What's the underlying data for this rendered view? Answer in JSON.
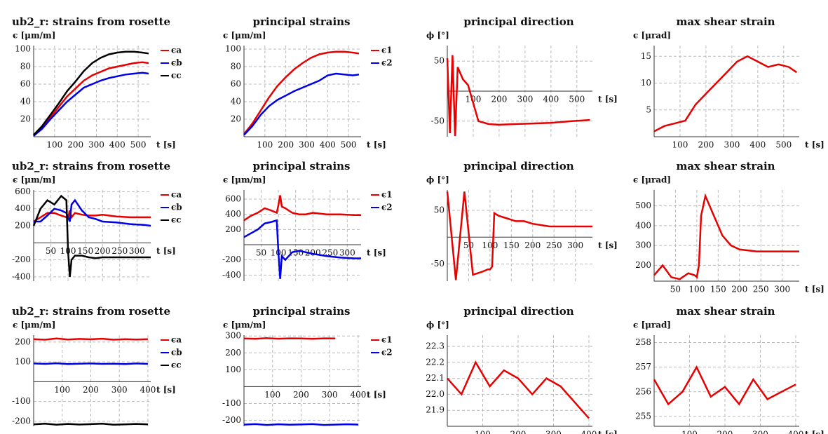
{
  "chart_data": [
    {
      "type": "line",
      "title": "ub2_r: strains from rosette",
      "ylabel": "ϵ [μm/m]",
      "xlabel": "t [s]",
      "grid": true,
      "legend": "right",
      "x": [
        0,
        40,
        80,
        120,
        160,
        200,
        240,
        280,
        320,
        360,
        400,
        440,
        480,
        520,
        550
      ],
      "series": [
        {
          "name": "ϵa",
          "color": "#e60000",
          "values": [
            2,
            10,
            22,
            34,
            46,
            55,
            64,
            70,
            74,
            78,
            80,
            82,
            84,
            85,
            84
          ]
        },
        {
          "name": "ϵb",
          "color": "#0000e6",
          "values": [
            1,
            9,
            20,
            30,
            40,
            48,
            56,
            60,
            64,
            67,
            69,
            71,
            72,
            73,
            72
          ]
        },
        {
          "name": "ϵc",
          "color": "#000000",
          "values": [
            2,
            12,
            25,
            38,
            52,
            63,
            75,
            84,
            90,
            94,
            96,
            97,
            97,
            96,
            95
          ]
        }
      ],
      "xlim": [
        0,
        560
      ],
      "ylim": [
        0,
        104
      ],
      "xticks": [
        100,
        200,
        300,
        400,
        500
      ],
      "yticks": [
        20,
        40,
        60,
        80,
        100
      ]
    },
    {
      "type": "line",
      "title": "principal strains",
      "ylabel": "ϵ [μm/m]",
      "xlabel": "t [s]",
      "grid": true,
      "legend": "right",
      "x": [
        0,
        40,
        80,
        120,
        160,
        200,
        240,
        280,
        320,
        360,
        400,
        440,
        480,
        520,
        550
      ],
      "series": [
        {
          "name": "ϵ1",
          "color": "#e60000",
          "values": [
            3,
            15,
            30,
            45,
            58,
            68,
            77,
            84,
            90,
            94,
            96,
            97,
            97,
            96,
            95
          ]
        },
        {
          "name": "ϵ2",
          "color": "#0000e6",
          "values": [
            2,
            12,
            25,
            35,
            42,
            47,
            52,
            56,
            60,
            64,
            70,
            72,
            71,
            70,
            71
          ]
        }
      ],
      "xlim": [
        0,
        560
      ],
      "ylim": [
        0,
        104
      ],
      "xticks": [
        100,
        200,
        300,
        400,
        500
      ],
      "yticks": [
        20,
        40,
        60,
        80,
        100
      ]
    },
    {
      "type": "line",
      "title": "principal direction",
      "ylabel": "ϕ [°]",
      "xlabel": "t [s]",
      "grid": true,
      "color": "#e60000",
      "x": [
        0,
        10,
        20,
        30,
        40,
        60,
        80,
        100,
        120,
        160,
        200,
        260,
        320,
        400,
        480,
        550
      ],
      "values": [
        55,
        -70,
        60,
        -75,
        40,
        20,
        10,
        -20,
        -50,
        -55,
        -56,
        -55,
        -54,
        -53,
        -50,
        -48
      ],
      "xlim": [
        0,
        560
      ],
      "ylim": [
        -76,
        76
      ],
      "xticks": [
        100,
        200,
        300,
        400,
        500
      ],
      "yticks": [
        -50,
        50
      ]
    },
    {
      "type": "line",
      "title": "max shear strain",
      "ylabel": "ϵ [μrad]",
      "xlabel": "t [s]",
      "grid": true,
      "color": "#e60000",
      "x": [
        0,
        40,
        80,
        120,
        160,
        200,
        240,
        280,
        320,
        360,
        400,
        440,
        480,
        520,
        550
      ],
      "values": [
        1,
        2,
        2.5,
        3,
        6,
        8,
        10,
        12,
        14,
        15,
        14,
        13,
        13.5,
        13,
        12
      ],
      "xlim": [
        0,
        560
      ],
      "ylim": [
        0,
        17
      ],
      "xticks": [
        100,
        200,
        300,
        400,
        500
      ],
      "yticks": [
        5,
        10,
        15
      ]
    },
    {
      "type": "line",
      "title": "ub2_r: strains from rosette",
      "ylabel": "ϵ [μm/m]",
      "xlabel": "t [s]",
      "grid": true,
      "legend": "right",
      "x": [
        0,
        20,
        40,
        60,
        80,
        95,
        100,
        105,
        110,
        120,
        140,
        160,
        180,
        200,
        240,
        280,
        320,
        340
      ],
      "series": [
        {
          "name": "ϵa",
          "color": "#e60000",
          "values": [
            250,
            300,
            350,
            350,
            320,
            300,
            300,
            380,
            300,
            350,
            330,
            320,
            320,
            330,
            310,
            300,
            300,
            300
          ]
        },
        {
          "name": "ϵb",
          "color": "#0000e6",
          "values": [
            250,
            250,
            320,
            400,
            380,
            350,
            300,
            250,
            450,
            500,
            380,
            300,
            280,
            250,
            240,
            220,
            210,
            200
          ]
        },
        {
          "name": "ϵc",
          "color": "#000000",
          "values": [
            200,
            400,
            500,
            450,
            550,
            500,
            -100,
            -400,
            -200,
            -150,
            -150,
            -170,
            -180,
            -170,
            -170,
            -170,
            -170,
            -170
          ]
        }
      ],
      "xlim": [
        0,
        340
      ],
      "ylim": [
        -450,
        620
      ],
      "xticks": [
        50,
        100,
        150,
        200,
        250,
        300
      ],
      "yticks": [
        -400,
        -200,
        200,
        400,
        600
      ]
    },
    {
      "type": "line",
      "title": "principal strains",
      "ylabel": "ϵ [μm/m]",
      "xlabel": "t [s]",
      "grid": true,
      "legend": "right",
      "x": [
        0,
        20,
        40,
        60,
        80,
        95,
        100,
        105,
        110,
        120,
        140,
        160,
        180,
        200,
        240,
        280,
        320,
        340
      ],
      "series": [
        {
          "name": "ϵ1",
          "color": "#e60000",
          "values": [
            320,
            380,
            420,
            480,
            450,
            420,
            520,
            650,
            500,
            480,
            420,
            400,
            400,
            420,
            400,
            400,
            390,
            390
          ]
        },
        {
          "name": "ϵ2",
          "color": "#0000e6",
          "values": [
            100,
            150,
            200,
            280,
            300,
            320,
            -100,
            -450,
            -150,
            -200,
            -100,
            -80,
            -100,
            -120,
            -150,
            -170,
            -180,
            -180
          ]
        }
      ],
      "xlim": [
        0,
        340
      ],
      "ylim": [
        -480,
        720
      ],
      "xticks": [
        50,
        100,
        150,
        200,
        250,
        300
      ],
      "yticks": [
        -400,
        -200,
        200,
        400,
        600
      ]
    },
    {
      "type": "line",
      "title": "principal direction",
      "ylabel": "ϕ [°]",
      "xlabel": "t [s]",
      "grid": true,
      "color": "#e60000",
      "x": [
        0,
        20,
        40,
        60,
        80,
        95,
        100,
        105,
        110,
        120,
        140,
        160,
        180,
        200,
        240,
        280,
        320,
        340
      ],
      "values": [
        85,
        -80,
        85,
        -70,
        -65,
        -60,
        -60,
        -55,
        45,
        40,
        35,
        30,
        30,
        25,
        20,
        20,
        20,
        20
      ],
      "xlim": [
        0,
        340
      ],
      "ylim": [
        -82,
        88
      ],
      "xticks": [
        50,
        100,
        150,
        200,
        250,
        300
      ],
      "yticks": [
        -50,
        50
      ]
    },
    {
      "type": "line",
      "title": "max shear strain",
      "ylabel": "ϵ [μrad]",
      "xlabel": "t [s]",
      "grid": true,
      "color": "#e60000",
      "x": [
        0,
        20,
        40,
        60,
        80,
        95,
        100,
        105,
        110,
        120,
        140,
        160,
        180,
        200,
        240,
        280,
        320,
        340
      ],
      "values": [
        150,
        200,
        140,
        130,
        160,
        150,
        140,
        200,
        450,
        550,
        450,
        350,
        300,
        280,
        270,
        270,
        270,
        270
      ],
      "xlim": [
        0,
        340
      ],
      "ylim": [
        120,
        580
      ],
      "xticks": [
        50,
        100,
        150,
        200,
        250,
        300
      ],
      "yticks": [
        200,
        300,
        400,
        500
      ]
    },
    {
      "type": "line",
      "title": "ub2_r: strains from rosette",
      "ylabel": "ϵ [μm/m]",
      "xlabel": "t [s]",
      "grid": true,
      "legend": "right",
      "x": [
        0,
        40,
        80,
        120,
        160,
        200,
        240,
        280,
        320,
        360,
        400
      ],
      "series": [
        {
          "name": "ϵa",
          "color": "#e60000",
          "values": [
            215,
            212,
            218,
            213,
            216,
            214,
            217,
            212,
            215,
            213,
            215
          ]
        },
        {
          "name": "ϵb",
          "color": "#0000e6",
          "values": [
            92,
            90,
            93,
            89,
            91,
            92,
            90,
            91,
            89,
            92,
            90
          ]
        },
        {
          "name": "ϵc",
          "color": "#000000",
          "values": [
            -215,
            -212,
            -217,
            -213,
            -216,
            -214,
            -212,
            -217,
            -215,
            -213,
            -215
          ]
        }
      ],
      "xlim": [
        0,
        410
      ],
      "ylim": [
        -225,
        235
      ],
      "xticks": [
        100,
        200,
        300,
        400
      ],
      "yticks": [
        -200,
        -100,
        100,
        200
      ]
    },
    {
      "type": "line",
      "title": "principal strains",
      "ylabel": "ϵ [μm/m]",
      "xlabel": "t [s]",
      "grid": true,
      "legend": "right",
      "x": [
        0,
        40,
        80,
        120,
        160,
        200,
        240,
        280,
        320,
        360,
        400
      ],
      "series": [
        {
          "name": "ϵ1",
          "color": "#e60000",
          "values": [
            285,
            283,
            287,
            284,
            286,
            285,
            283,
            286,
            285,
            null,
            null
          ]
        },
        {
          "name": "ϵ2",
          "color": "#0000e6",
          "values": [
            -225,
            -222,
            -227,
            -223,
            -226,
            -224,
            -222,
            -227,
            -225,
            -223,
            -225
          ]
        }
      ],
      "xlim": [
        0,
        410
      ],
      "ylim": [
        -235,
        305
      ],
      "xticks": [
        100,
        200,
        300,
        400
      ],
      "yticks": [
        -200,
        -100,
        100,
        200,
        300
      ]
    },
    {
      "type": "line",
      "title": "principal direction",
      "ylabel": "ϕ [°]",
      "xlabel": "t [s]",
      "grid": true,
      "color": "#e60000",
      "x": [
        0,
        40,
        80,
        120,
        160,
        200,
        240,
        280,
        320,
        360,
        400
      ],
      "values": [
        22.1,
        22,
        22.2,
        22.05,
        22.15,
        22.1,
        22,
        22.1,
        22.05,
        21.95,
        21.85
      ],
      "xlim": [
        0,
        410
      ],
      "ylim": [
        21.8,
        22.37
      ],
      "xticks": [
        100,
        200,
        300,
        400
      ],
      "yticks": [
        21.9,
        {
          "value": 22,
          "label": "22.0"
        },
        22.1,
        22.2,
        22.3
      ]
    },
    {
      "type": "line",
      "title": "max shear strain",
      "ylabel": "ϵ [μrad]",
      "xlabel": "t [s]",
      "grid": true,
      "color": "#e60000",
      "x": [
        0,
        40,
        80,
        120,
        160,
        200,
        240,
        280,
        320,
        360,
        400
      ],
      "values": [
        256.5,
        255.5,
        256,
        257,
        255.8,
        256.2,
        255.5,
        256.5,
        255.7,
        256,
        256.3
      ],
      "xlim": [
        0,
        410
      ],
      "ylim": [
        254.6,
        258.3
      ],
      "xticks": [
        100,
        200,
        300,
        400
      ],
      "yticks": [
        255,
        256,
        257,
        258
      ]
    }
  ]
}
